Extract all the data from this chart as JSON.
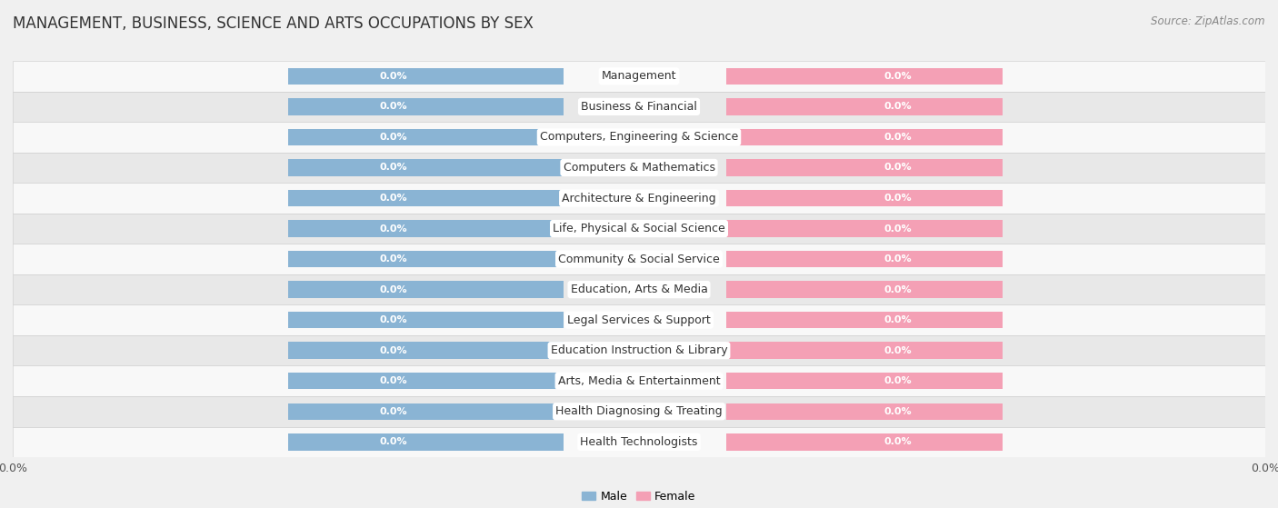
{
  "title": "MANAGEMENT, BUSINESS, SCIENCE AND ARTS OCCUPATIONS BY SEX",
  "source": "Source: ZipAtlas.com",
  "categories": [
    "Management",
    "Business & Financial",
    "Computers, Engineering & Science",
    "Computers & Mathematics",
    "Architecture & Engineering",
    "Life, Physical & Social Science",
    "Community & Social Service",
    "Education, Arts & Media",
    "Legal Services & Support",
    "Education Instruction & Library",
    "Arts, Media & Entertainment",
    "Health Diagnosing & Treating",
    "Health Technologists"
  ],
  "male_values": [
    0.0,
    0.0,
    0.0,
    0.0,
    0.0,
    0.0,
    0.0,
    0.0,
    0.0,
    0.0,
    0.0,
    0.0,
    0.0
  ],
  "female_values": [
    0.0,
    0.0,
    0.0,
    0.0,
    0.0,
    0.0,
    0.0,
    0.0,
    0.0,
    0.0,
    0.0,
    0.0,
    0.0
  ],
  "male_color": "#8ab4d4",
  "female_color": "#f4a0b5",
  "male_label": "Male",
  "female_label": "Female",
  "bg_color": "#f0f0f0",
  "row_bg_even": "#f8f8f8",
  "row_bg_odd": "#e8e8e8",
  "title_fontsize": 12,
  "label_fontsize": 9,
  "value_fontsize": 8,
  "tick_fontsize": 9,
  "source_fontsize": 8.5,
  "legend_fontsize": 9
}
